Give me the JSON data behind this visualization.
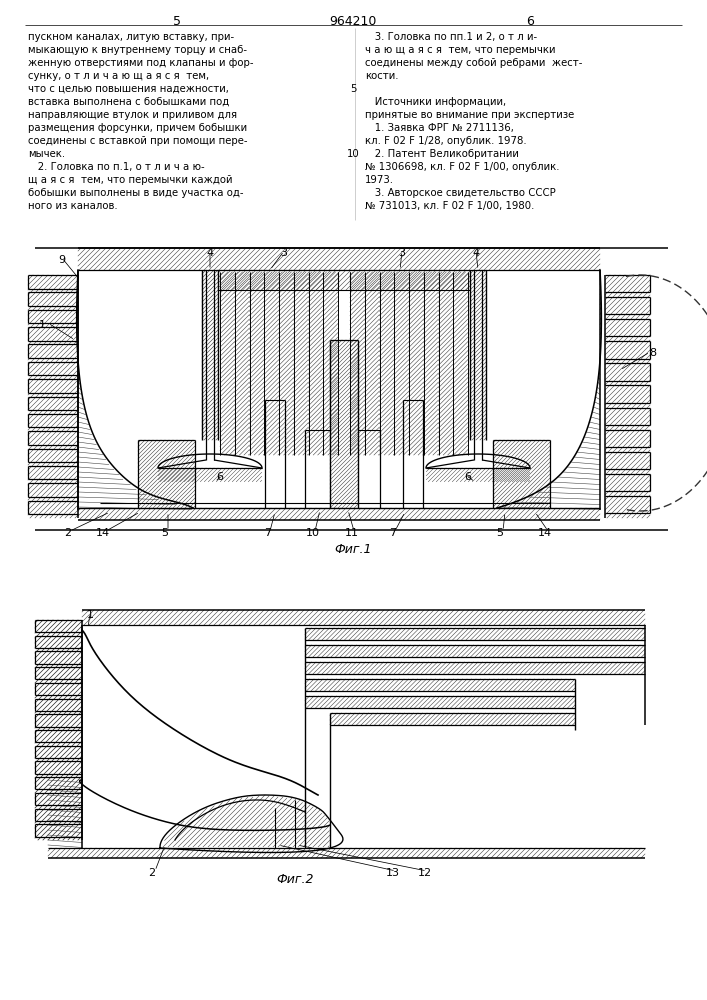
{
  "page_number_left": "5",
  "page_number_center": "964210",
  "page_number_right": "6",
  "text_left": [
    "пускном каналах, литую вставку, при-",
    "мыкающую к внутреннему торцу и снаб-",
    "женную отверстиями под клапаны и фор-",
    "сунку, о т л и ч а ю щ а я с я  тем,",
    "что с целью повышения надежности,",
    "вставка выполнена с бобышками под",
    "направляющие втулок и приливом для",
    "размещения форсунки, причем бобышки",
    "соединены с вставкой при помощи пере-",
    "мычек.",
    "   2. Головка по п.1, о т л и ч а ю-",
    "щ а я с я  тем, что перемычки каждой",
    "бобышки выполнены в виде участка од-",
    "ного из каналов."
  ],
  "text_right": [
    "   3. Головка по пп.1 и 2, о т л и-",
    "ч а ю щ а я с я  тем, что перемычки",
    "соединены между собой ребрами  жест-",
    "кости.",
    "",
    "   Источники информации,",
    "принятые во внимание при экспертизе",
    "   1. Заявка ФРГ № 2711136,",
    "кл. F 02 F 1/28, опублик. 1978.",
    "   2. Патент Великобритании",
    "№ 1306698, кл. F 02 F 1/00, опублик.",
    "1973.",
    "   3. Авторское свидетельство СССР",
    "№ 731013, кл. F 02 F 1/00, 1980."
  ],
  "fig1_caption": "Фиг.1",
  "fig2_caption": "Фиг.2",
  "bg_color": "#ffffff",
  "line_color": "#000000"
}
